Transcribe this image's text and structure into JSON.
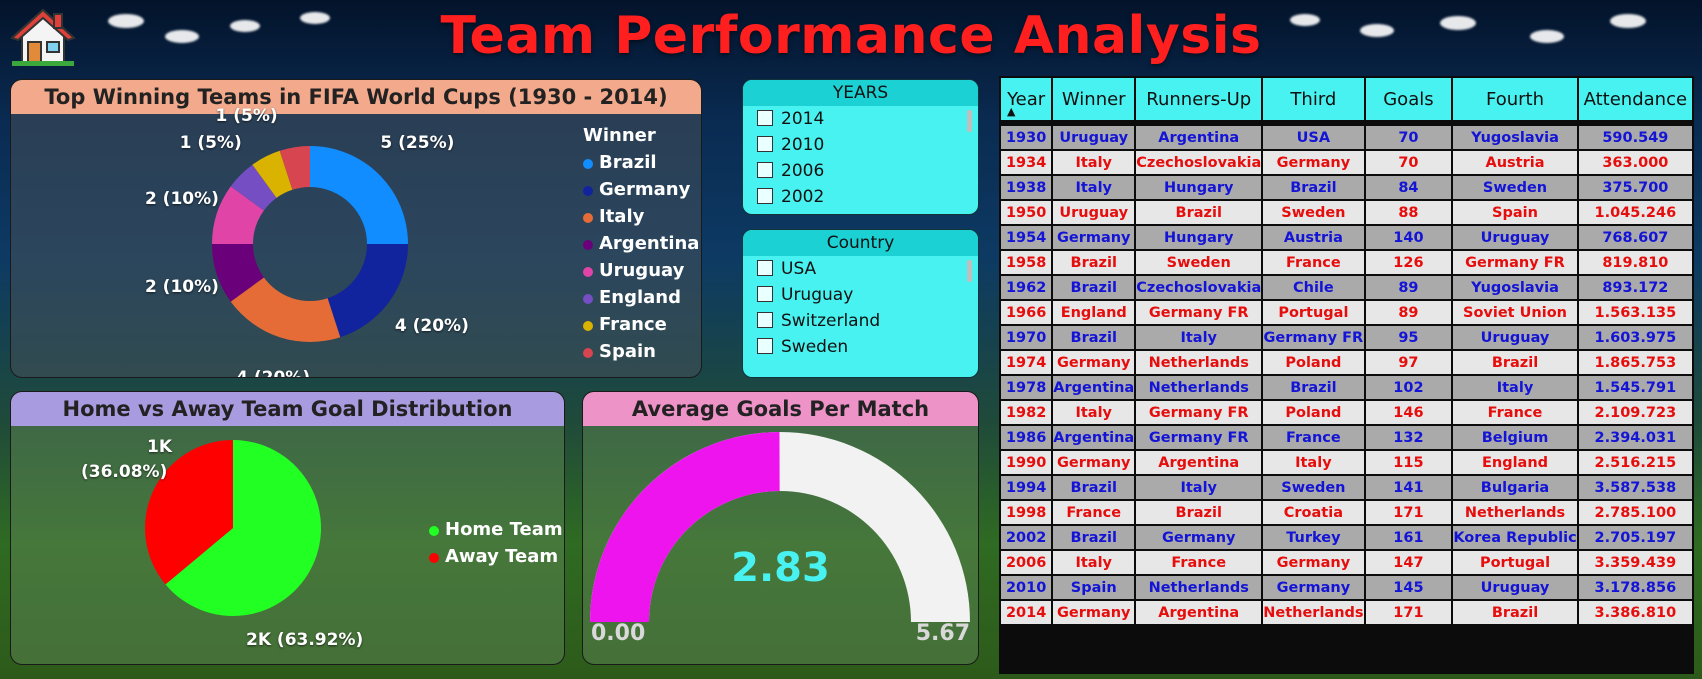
{
  "header": {
    "title": "Team Performance Analysis",
    "home_icon": "house-icon"
  },
  "colors": {
    "title": "#ff1f1f",
    "slicer_bg": "#48f2f0",
    "slicer_head": "#1bd1d3",
    "row_odd_text": "#1414d6",
    "row_even_text": "#e60d0d",
    "home_team": "#22ff22",
    "away_team": "#ff0000",
    "gauge_fill": "#ee14ee",
    "gauge_track": "#f2f2f2",
    "gauge_value": "#48f2f0"
  },
  "donut_panel": {
    "title": "Top Winning Teams in FIFA World Cups (1930 - 2014)",
    "legend_title": "Winner"
  },
  "home_away_panel": {
    "title": "Home vs Away Team Goal Distribution"
  },
  "gauge_panel": {
    "title": "Average Goals Per Match"
  },
  "chart_data": [
    {
      "type": "pie",
      "variant": "donut",
      "title": "Top Winning Teams in FIFA World Cups (1930 - 2014)",
      "legend_title": "Winner",
      "legend_position": "right",
      "slices": [
        {
          "name": "Brazil",
          "value": 5,
          "label": "5 (25%)",
          "color": "#118dff"
        },
        {
          "name": "Germany",
          "value": 4,
          "label": "4 (20%)",
          "color": "#12239e"
        },
        {
          "name": "Italy",
          "value": 4,
          "label": "4 (20%)",
          "color": "#e66c37"
        },
        {
          "name": "Argentina",
          "value": 2,
          "label": "2 (10%)",
          "color": "#6b007b"
        },
        {
          "name": "Uruguay",
          "value": 2,
          "label": "2 (10%)",
          "color": "#e044a7"
        },
        {
          "name": "England",
          "value": 1,
          "label": "1 (5%)",
          "color": "#744ec2"
        },
        {
          "name": "France",
          "value": 1,
          "label": "1 (5%)",
          "color": "#d9b300"
        },
        {
          "name": "Spain",
          "value": 1,
          "label": "",
          "color": "#d64550"
        }
      ]
    },
    {
      "type": "pie",
      "title": "Home vs Away Team Goal Distribution",
      "legend_position": "right",
      "slices": [
        {
          "name": "Home Team",
          "value": 63.92,
          "label": "2K (63.92%)",
          "color": "#22ff22"
        },
        {
          "name": "Away Team",
          "value": 36.08,
          "label_line1": "1K",
          "label_line2": "(36.08%)",
          "color": "#ff0000"
        }
      ]
    },
    {
      "type": "gauge",
      "title": "Average Goals Per Match",
      "value": 2.83,
      "value_label": "2.83",
      "min": 0,
      "min_label": "0.00",
      "max": 5.67,
      "max_label": "5.67"
    }
  ],
  "years_slicer": {
    "title": "YEARS",
    "items": [
      "2014",
      "2010",
      "2006",
      "2002"
    ]
  },
  "country_slicer": {
    "title": "Country",
    "items": [
      "USA",
      "Uruguay",
      "Switzerland",
      "Sweden"
    ]
  },
  "table": {
    "columns": [
      "Year",
      "Winner",
      "Runners-Up",
      "Third",
      "Goals",
      "Fourth",
      "Attendance"
    ],
    "sort_indicator": "▲",
    "rows": [
      [
        "1930",
        "Uruguay",
        "Argentina",
        "USA",
        "70",
        "Yugoslavia",
        "590.549"
      ],
      [
        "1934",
        "Italy",
        "Czechoslovakia",
        "Germany",
        "70",
        "Austria",
        "363.000"
      ],
      [
        "1938",
        "Italy",
        "Hungary",
        "Brazil",
        "84",
        "Sweden",
        "375.700"
      ],
      [
        "1950",
        "Uruguay",
        "Brazil",
        "Sweden",
        "88",
        "Spain",
        "1.045.246"
      ],
      [
        "1954",
        "Germany",
        "Hungary",
        "Austria",
        "140",
        "Uruguay",
        "768.607"
      ],
      [
        "1958",
        "Brazil",
        "Sweden",
        "France",
        "126",
        "Germany FR",
        "819.810"
      ],
      [
        "1962",
        "Brazil",
        "Czechoslovakia",
        "Chile",
        "89",
        "Yugoslavia",
        "893.172"
      ],
      [
        "1966",
        "England",
        "Germany FR",
        "Portugal",
        "89",
        "Soviet Union",
        "1.563.135"
      ],
      [
        "1970",
        "Brazil",
        "Italy",
        "Germany FR",
        "95",
        "Uruguay",
        "1.603.975"
      ],
      [
        "1974",
        "Germany",
        "Netherlands",
        "Poland",
        "97",
        "Brazil",
        "1.865.753"
      ],
      [
        "1978",
        "Argentina",
        "Netherlands",
        "Brazil",
        "102",
        "Italy",
        "1.545.791"
      ],
      [
        "1982",
        "Italy",
        "Germany FR",
        "Poland",
        "146",
        "France",
        "2.109.723"
      ],
      [
        "1986",
        "Argentina",
        "Germany FR",
        "France",
        "132",
        "Belgium",
        "2.394.031"
      ],
      [
        "1990",
        "Germany",
        "Argentina",
        "Italy",
        "115",
        "England",
        "2.516.215"
      ],
      [
        "1994",
        "Brazil",
        "Italy",
        "Sweden",
        "141",
        "Bulgaria",
        "3.587.538"
      ],
      [
        "1998",
        "France",
        "Brazil",
        "Croatia",
        "171",
        "Netherlands",
        "2.785.100"
      ],
      [
        "2002",
        "Brazil",
        "Germany",
        "Turkey",
        "161",
        "Korea Republic",
        "2.705.197"
      ],
      [
        "2006",
        "Italy",
        "France",
        "Germany",
        "147",
        "Portugal",
        "3.359.439"
      ],
      [
        "2010",
        "Spain",
        "Netherlands",
        "Germany",
        "145",
        "Uruguay",
        "3.178.856"
      ],
      [
        "2014",
        "Germany",
        "Argentina",
        "Netherlands",
        "171",
        "Brazil",
        "3.386.810"
      ]
    ]
  }
}
